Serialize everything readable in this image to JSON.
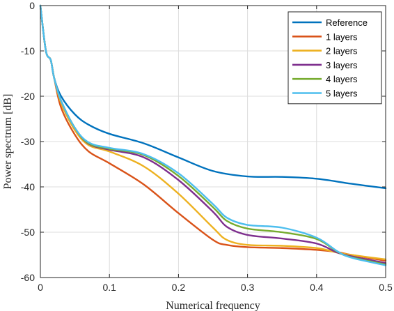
{
  "chart_data": {
    "type": "line",
    "title": "",
    "xlabel": "Numerical frequency",
    "ylabel": "Power spectrum [dB]",
    "xlim": [
      0,
      0.5
    ],
    "ylim": [
      -60,
      0
    ],
    "xticks": [
      0,
      0.1,
      0.2,
      0.3,
      0.4,
      0.5
    ],
    "xtick_labels": [
      "0",
      "0.1",
      "0.2",
      "0.3",
      "0.4",
      "0.5"
    ],
    "yticks": [
      0,
      -10,
      -20,
      -30,
      -40,
      -50,
      -60
    ],
    "ytick_labels": [
      "0",
      "-10",
      "-20",
      "-30",
      "-40",
      "-50",
      "-60"
    ],
    "grid": true,
    "legend_position": "top-right",
    "series": [
      {
        "name": "Reference",
        "color": "#0072BD",
        "x": [
          0,
          0.008,
          0.015,
          0.02,
          0.03,
          0.05,
          0.07,
          0.1,
          0.15,
          0.2,
          0.25,
          0.3,
          0.35,
          0.4,
          0.45,
          0.5
        ],
        "y": [
          0,
          -10,
          -12,
          -16,
          -20,
          -24,
          -26.3,
          -28.3,
          -30.4,
          -33.5,
          -36.5,
          -37.7,
          -37.8,
          -38.2,
          -39.3,
          -40.3
        ]
      },
      {
        "name": "1 layers",
        "color": "#D95319",
        "x": [
          0,
          0.008,
          0.015,
          0.02,
          0.03,
          0.05,
          0.07,
          0.1,
          0.15,
          0.2,
          0.25,
          0.27,
          0.3,
          0.35,
          0.4,
          0.43,
          0.45,
          0.5
        ],
        "y": [
          0,
          -10,
          -12,
          -16,
          -22.5,
          -28.5,
          -32.2,
          -34.8,
          -39.5,
          -45.8,
          -51.7,
          -52.8,
          -53.3,
          -53.5,
          -53.9,
          -54.4,
          -55,
          -56.3
        ]
      },
      {
        "name": "2 layers",
        "color": "#EDB120",
        "x": [
          0,
          0.008,
          0.015,
          0.02,
          0.03,
          0.05,
          0.07,
          0.1,
          0.15,
          0.2,
          0.25,
          0.27,
          0.3,
          0.35,
          0.4,
          0.43,
          0.45,
          0.5
        ],
        "y": [
          0,
          -10,
          -12,
          -16,
          -21.5,
          -27.5,
          -30.8,
          -32.2,
          -35.5,
          -41.5,
          -49,
          -51.7,
          -52.8,
          -53,
          -53.5,
          -54.5,
          -55,
          -56
        ]
      },
      {
        "name": "3 layers",
        "color": "#7E2F8E",
        "x": [
          0,
          0.008,
          0.015,
          0.02,
          0.03,
          0.05,
          0.07,
          0.1,
          0.15,
          0.2,
          0.25,
          0.27,
          0.3,
          0.35,
          0.4,
          0.43,
          0.45,
          0.5
        ],
        "y": [
          0,
          -10,
          -12,
          -16,
          -21,
          -27,
          -30.5,
          -31.8,
          -33.5,
          -38.5,
          -45.5,
          -48.8,
          -50.6,
          -51.4,
          -52.5,
          -54.5,
          -55.3,
          -56.8
        ]
      },
      {
        "name": "4 layers",
        "color": "#77AC30",
        "x": [
          0,
          0.008,
          0.015,
          0.02,
          0.03,
          0.05,
          0.07,
          0.1,
          0.15,
          0.2,
          0.25,
          0.27,
          0.3,
          0.35,
          0.4,
          0.43,
          0.45,
          0.5
        ],
        "y": [
          0,
          -10,
          -12,
          -16,
          -21,
          -27,
          -30.4,
          -31.6,
          -33,
          -37.6,
          -44.5,
          -47.5,
          -49.2,
          -50,
          -51.5,
          -54.3,
          -55.5,
          -57.1
        ]
      },
      {
        "name": "5 layers",
        "color": "#4DBEEE",
        "x": [
          0,
          0.008,
          0.015,
          0.02,
          0.03,
          0.05,
          0.07,
          0.1,
          0.15,
          0.2,
          0.25,
          0.27,
          0.3,
          0.35,
          0.4,
          0.43,
          0.45,
          0.5
        ],
        "y": [
          0,
          -10,
          -12,
          -16,
          -21,
          -27,
          -30.2,
          -31.4,
          -32.8,
          -37,
          -43.8,
          -46.8,
          -48.4,
          -49,
          -51.2,
          -54.2,
          -55.6,
          -57.3
        ]
      }
    ]
  }
}
